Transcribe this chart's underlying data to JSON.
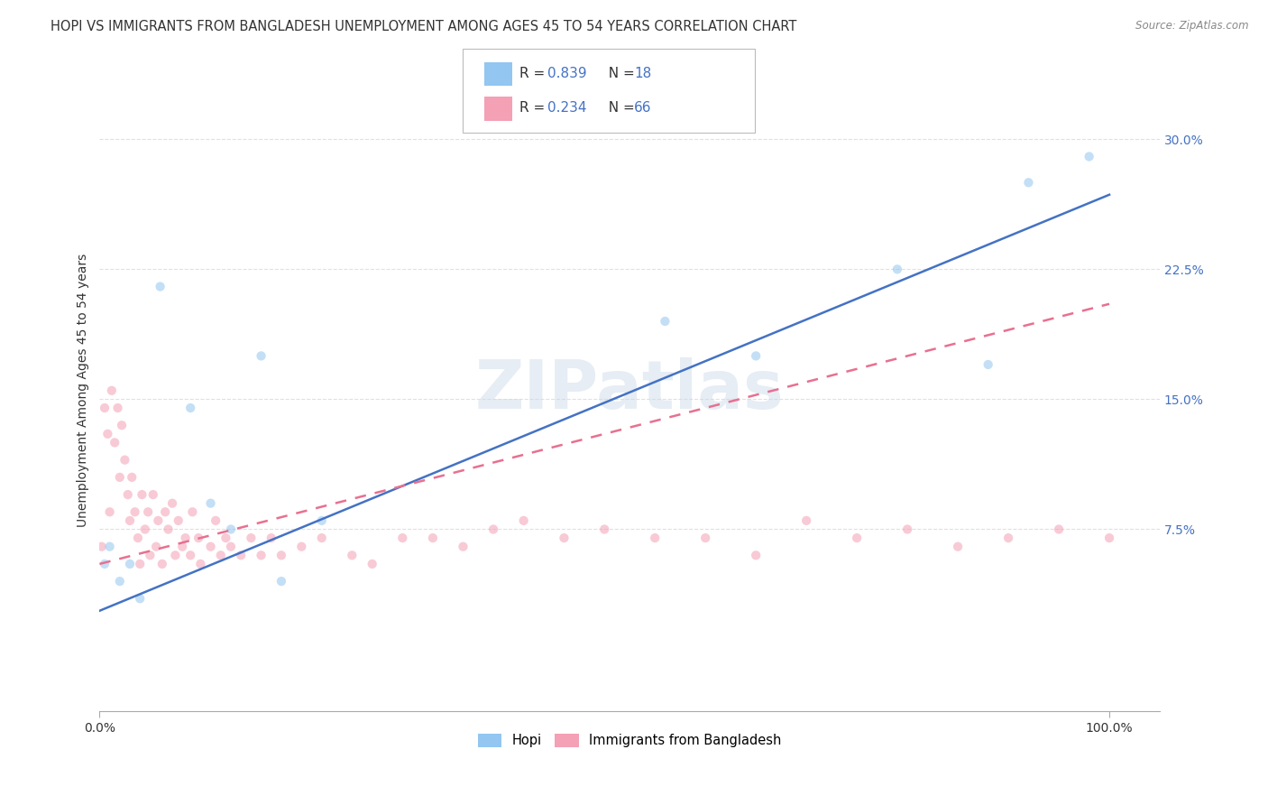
{
  "title": "HOPI VS IMMIGRANTS FROM BANGLADESH UNEMPLOYMENT AMONG AGES 45 TO 54 YEARS CORRELATION CHART",
  "source": "Source: ZipAtlas.com",
  "ylabel": "Unemployment Among Ages 45 to 54 years",
  "xlim": [
    0.0,
    1.05
  ],
  "ylim": [
    -0.03,
    0.34
  ],
  "xticks": [
    0.0,
    1.0
  ],
  "xticklabels": [
    "0.0%",
    "100.0%"
  ],
  "yticks": [
    0.075,
    0.15,
    0.225,
    0.3
  ],
  "yticklabels": [
    "7.5%",
    "15.0%",
    "22.5%",
    "30.0%"
  ],
  "legend_label_R1": "R = ",
  "legend_val_R1": "0.839",
  "legend_label_N1": "  N = ",
  "legend_val_N1": "18",
  "legend_label_R2": "R = ",
  "legend_val_R2": "0.234",
  "legend_label_N2": "  N = ",
  "legend_val_N2": "66",
  "legend_bottom_label1": "Hopi",
  "legend_bottom_label2": "Immigrants from Bangladesh",
  "text_color": "#333333",
  "blue_color": "#4472c4",
  "hopi_scatter_color": "#93c6f0",
  "bangladesh_scatter_color": "#f4a0b5",
  "hopi_line_color": "#4472c4",
  "bangladesh_line_color": "#e87090",
  "watermark": "ZIPatlas",
  "hopi_scatter_x": [
    0.005,
    0.01,
    0.02,
    0.03,
    0.04,
    0.06,
    0.09,
    0.11,
    0.13,
    0.16,
    0.18,
    0.22,
    0.56,
    0.65,
    0.79,
    0.88,
    0.92,
    0.98
  ],
  "hopi_scatter_y": [
    0.055,
    0.065,
    0.045,
    0.055,
    0.035,
    0.215,
    0.145,
    0.09,
    0.075,
    0.175,
    0.045,
    0.08,
    0.195,
    0.175,
    0.225,
    0.17,
    0.275,
    0.29
  ],
  "bangladesh_scatter_x": [
    0.002,
    0.005,
    0.008,
    0.01,
    0.012,
    0.015,
    0.018,
    0.02,
    0.022,
    0.025,
    0.028,
    0.03,
    0.032,
    0.035,
    0.038,
    0.04,
    0.042,
    0.045,
    0.048,
    0.05,
    0.053,
    0.056,
    0.058,
    0.062,
    0.065,
    0.068,
    0.072,
    0.075,
    0.078,
    0.082,
    0.085,
    0.09,
    0.092,
    0.098,
    0.1,
    0.11,
    0.115,
    0.12,
    0.125,
    0.13,
    0.14,
    0.15,
    0.16,
    0.17,
    0.18,
    0.2,
    0.22,
    0.25,
    0.27,
    0.3,
    0.33,
    0.36,
    0.39,
    0.42,
    0.46,
    0.5,
    0.55,
    0.6,
    0.65,
    0.7,
    0.75,
    0.8,
    0.85,
    0.9,
    0.95,
    1.0
  ],
  "bangladesh_scatter_y": [
    0.065,
    0.145,
    0.13,
    0.085,
    0.155,
    0.125,
    0.145,
    0.105,
    0.135,
    0.115,
    0.095,
    0.08,
    0.105,
    0.085,
    0.07,
    0.055,
    0.095,
    0.075,
    0.085,
    0.06,
    0.095,
    0.065,
    0.08,
    0.055,
    0.085,
    0.075,
    0.09,
    0.06,
    0.08,
    0.065,
    0.07,
    0.06,
    0.085,
    0.07,
    0.055,
    0.065,
    0.08,
    0.06,
    0.07,
    0.065,
    0.06,
    0.07,
    0.06,
    0.07,
    0.06,
    0.065,
    0.07,
    0.06,
    0.055,
    0.07,
    0.07,
    0.065,
    0.075,
    0.08,
    0.07,
    0.075,
    0.07,
    0.07,
    0.06,
    0.08,
    0.07,
    0.075,
    0.065,
    0.07,
    0.075,
    0.07
  ],
  "hopi_line_x0": 0.0,
  "hopi_line_x1": 1.0,
  "hopi_line_y0": 0.028,
  "hopi_line_y1": 0.268,
  "bangladesh_line_x0": 0.0,
  "bangladesh_line_x1": 1.0,
  "bangladesh_line_y0": 0.055,
  "bangladesh_line_y1": 0.205,
  "grid_color": "#dddddd",
  "background_color": "#ffffff",
  "title_fontsize": 10.5,
  "axis_label_fontsize": 10,
  "tick_fontsize": 10,
  "scatter_size": 55,
  "scatter_alpha": 0.55,
  "line_width": 1.8
}
